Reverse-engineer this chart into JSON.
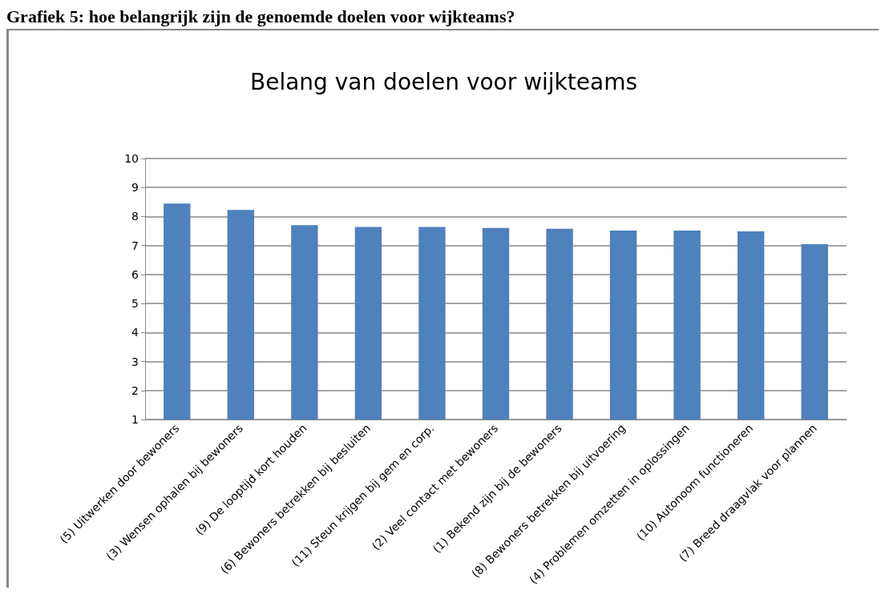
{
  "chart_data": {
    "type": "bar",
    "subtitle": "Grafiek 5: hoe belangrijk zijn de genoemde doelen voor wijkteams?",
    "title": "Belang van doelen voor wijkteams",
    "categories": [
      "(5) Uitwerken door bewoners",
      "(3) Wensen ophalen bij bewoners",
      "(9) De looptijd kort houden",
      "(6) Bewoners betrekken bij besluiten",
      "(11) Steun krijgen bij gem en corp.",
      "(2) Veel contact met bewoners",
      "(1) Bekend zijn bij de bewoners",
      "(8) Bewoners betrekken bij uitvoering",
      "(4) Problemen omzetten in oplossingen",
      "(10) Autonoom functioneren",
      "(7) Breed draagvlak voor plannen"
    ],
    "values": [
      8.45,
      8.23,
      7.7,
      7.64,
      7.64,
      7.61,
      7.58,
      7.52,
      7.52,
      7.49,
      7.05
    ],
    "color": "#4f81bd",
    "ylim": [
      1,
      10
    ],
    "yticks": [
      1,
      2,
      3,
      4,
      5,
      6,
      7,
      8,
      9,
      10
    ],
    "grid": "y"
  }
}
